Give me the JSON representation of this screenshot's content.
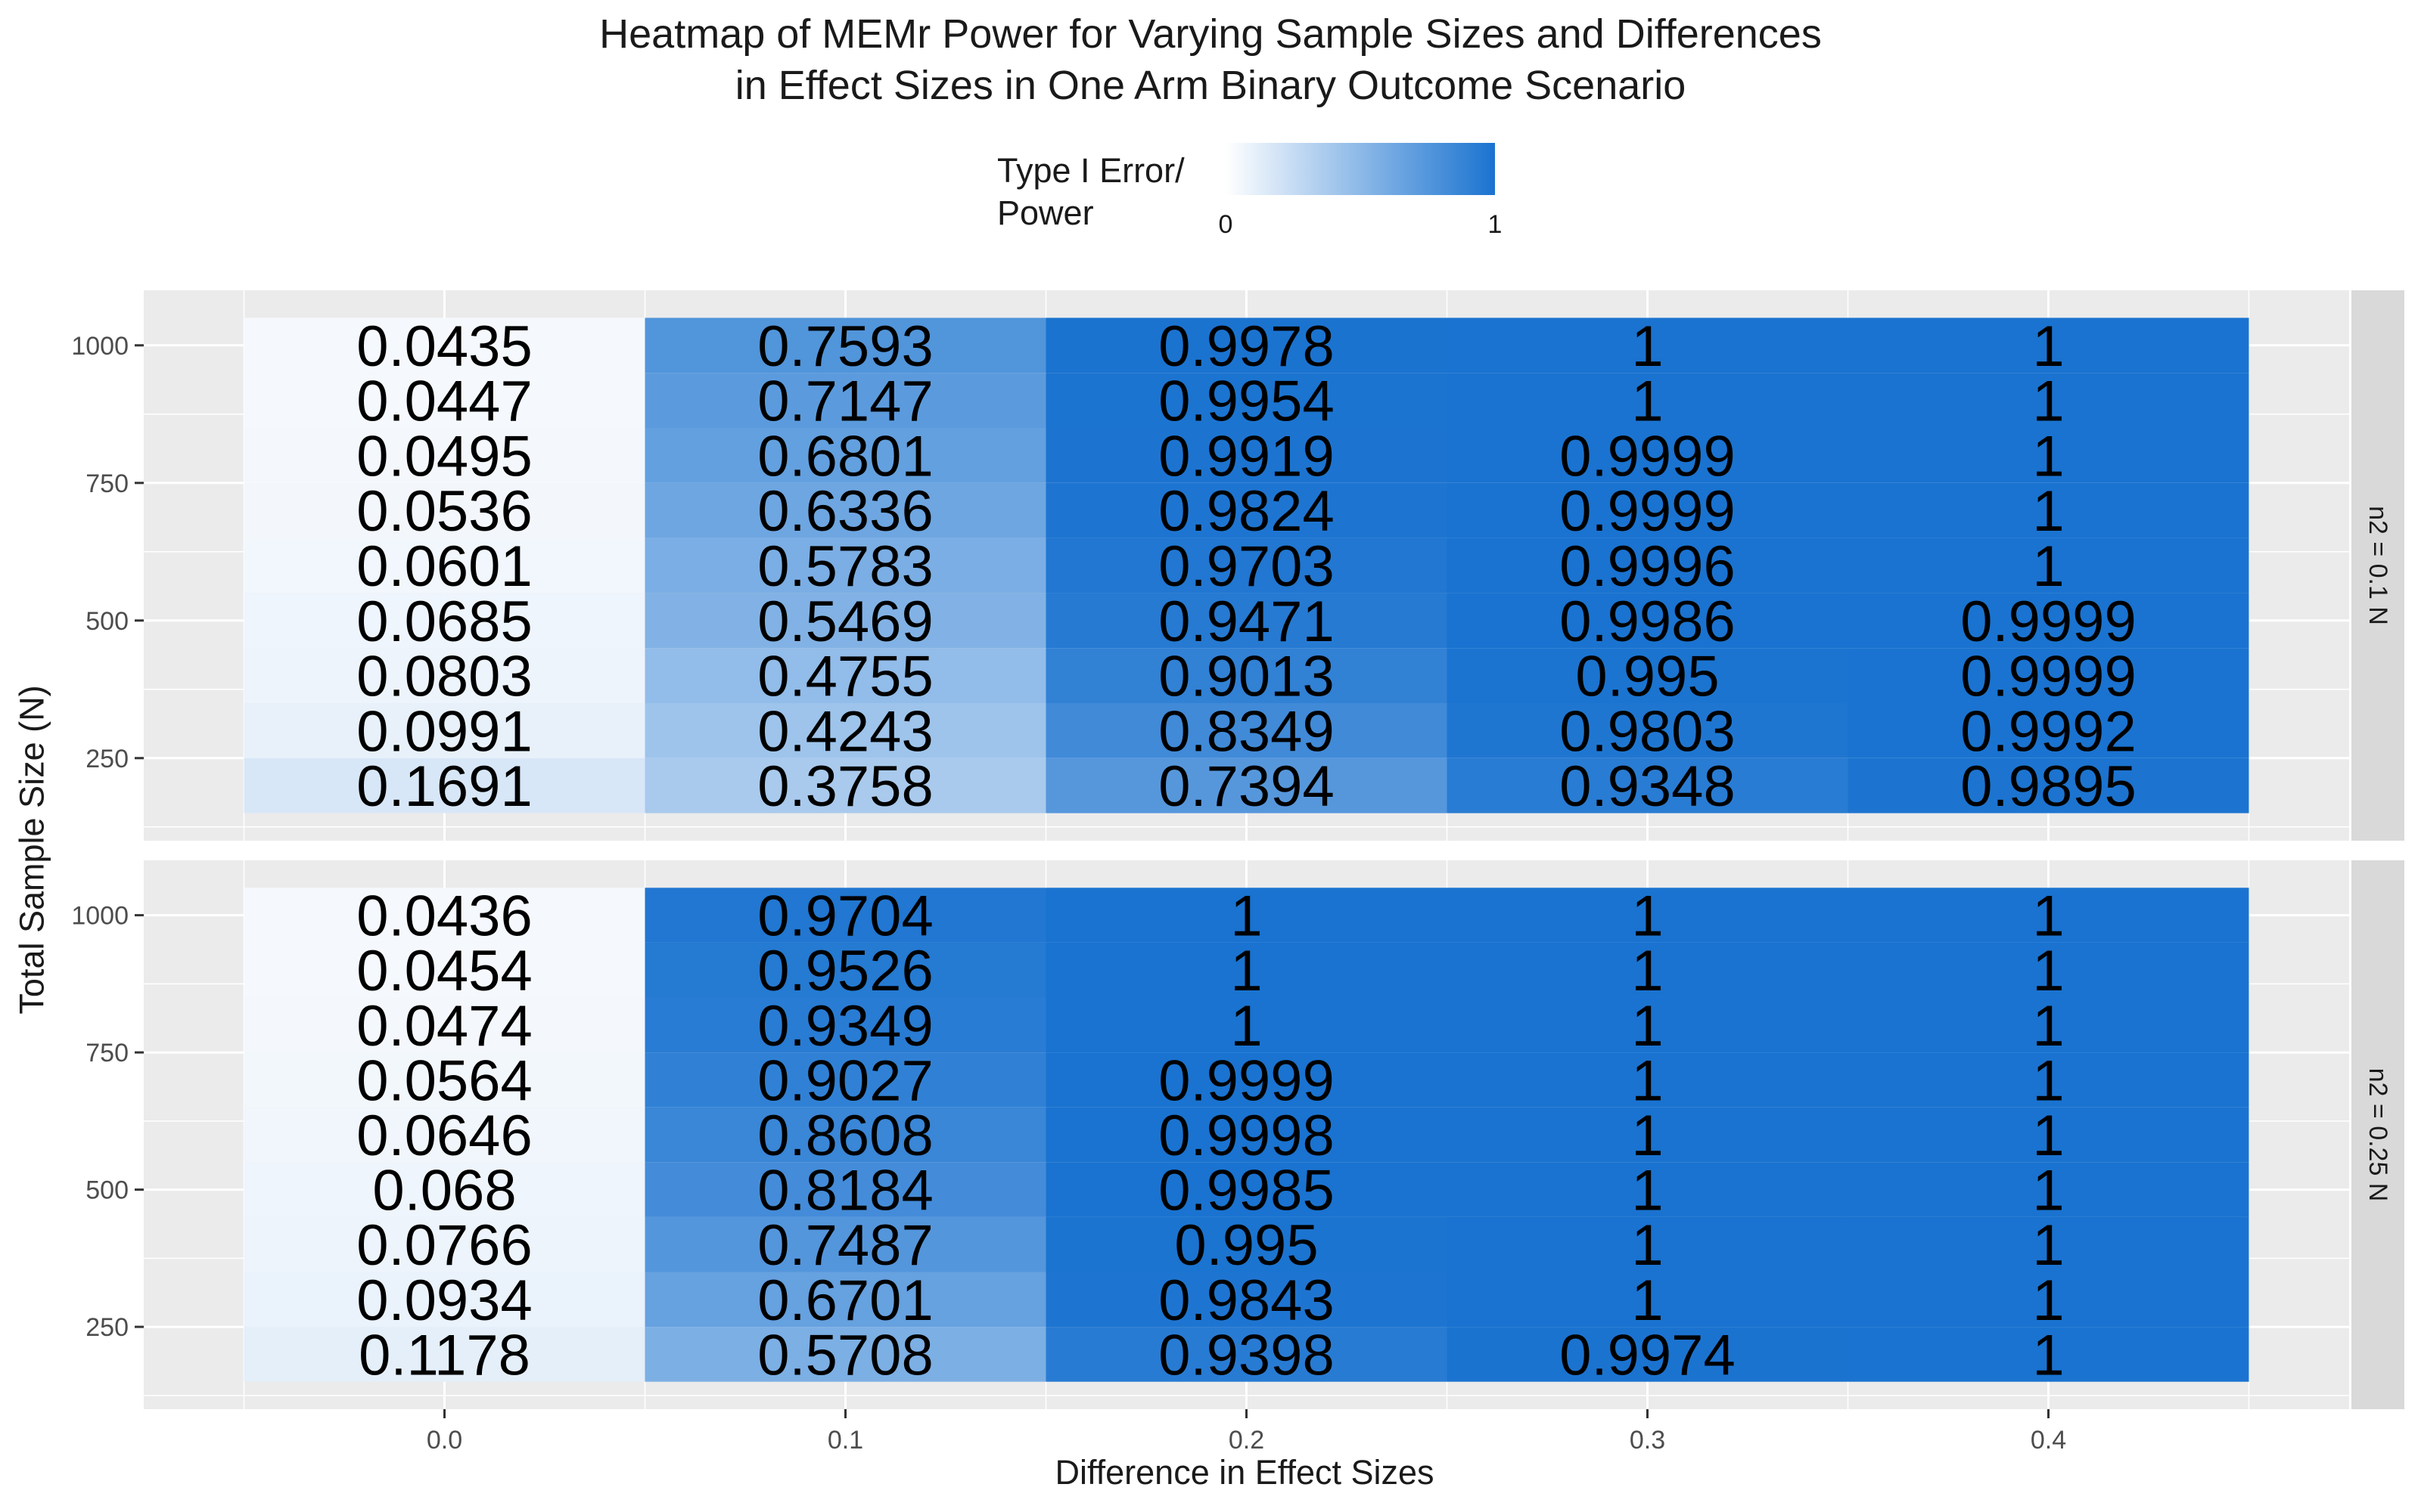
{
  "chart_data": {
    "type": "heatmap",
    "title_lines": [
      "Heatmap of MEMr Power for Varying Sample Sizes and Differences",
      "in Effect Sizes in One Arm Binary Outcome Scenario"
    ],
    "xlabel": "Difference in Effect Sizes",
    "ylabel": "Total Sample Size (N)",
    "legend": {
      "title": "Type I Error/\nPower",
      "min": 0,
      "max": 1,
      "min_label": "0",
      "max_label": "1",
      "low_color": "#ffffff",
      "high_color": "#1a73d0",
      "placement": "top"
    },
    "x_values": [
      0.0,
      0.1,
      0.2,
      0.3,
      0.4
    ],
    "x_tick_labels": [
      "0.0",
      "0.1",
      "0.2",
      "0.3",
      "0.4"
    ],
    "y_values": [
      1000,
      900,
      800,
      700,
      600,
      500,
      400,
      300,
      200
    ],
    "y_ticks": [
      1000,
      750,
      500,
      250
    ],
    "y_tick_labels": [
      "1000",
      "750",
      "500",
      "250"
    ],
    "ylim": [
      100,
      1100
    ],
    "xlim": [
      -0.075,
      0.475
    ],
    "grid": true,
    "panels": [
      {
        "strip_label": "n2 = 0.1 N",
        "labels": [
          [
            "0.0435",
            "0.7593",
            "0.9978",
            "1",
            "1"
          ],
          [
            "0.0447",
            "0.7147",
            "0.9954",
            "1",
            "1"
          ],
          [
            "0.0495",
            "0.6801",
            "0.9919",
            "0.9999",
            "1"
          ],
          [
            "0.0536",
            "0.6336",
            "0.9824",
            "0.9999",
            "1"
          ],
          [
            "0.0601",
            "0.5783",
            "0.9703",
            "0.9996",
            "1"
          ],
          [
            "0.0685",
            "0.5469",
            "0.9471",
            "0.9986",
            "0.9999"
          ],
          [
            "0.0803",
            "0.4755",
            "0.9013",
            "0.995",
            "0.9999"
          ],
          [
            "0.0991",
            "0.4243",
            "0.8349",
            "0.9803",
            "0.9992"
          ],
          [
            "0.1691",
            "0.3758",
            "0.7394",
            "0.9348",
            "0.9895"
          ]
        ]
      },
      {
        "strip_label": "n2 = 0.25 N",
        "labels": [
          [
            "0.0436",
            "0.9704",
            "1",
            "1",
            "1"
          ],
          [
            "0.0454",
            "0.9526",
            "1",
            "1",
            "1"
          ],
          [
            "0.0474",
            "0.9349",
            "1",
            "1",
            "1"
          ],
          [
            "0.0564",
            "0.9027",
            "0.9999",
            "1",
            "1"
          ],
          [
            "0.0646",
            "0.8608",
            "0.9998",
            "1",
            "1"
          ],
          [
            "0.068",
            "0.8184",
            "0.9985",
            "1",
            "1"
          ],
          [
            "0.0766",
            "0.7487",
            "0.995",
            "1",
            "1"
          ],
          [
            "0.0934",
            "0.6701",
            "0.9843",
            "1",
            "1"
          ],
          [
            "0.1178",
            "0.5708",
            "0.9398",
            "0.9974",
            "1"
          ]
        ]
      }
    ]
  }
}
